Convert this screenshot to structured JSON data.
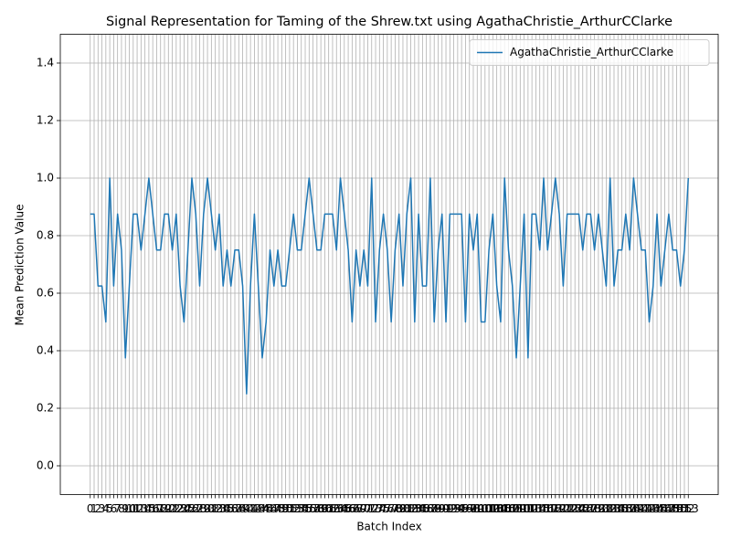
{
  "chart_data": {
    "type": "line",
    "title": "Signal Representation for Taming of the Shrew.txt using AgathaChristie_ArthurCClarke",
    "xlabel": "Batch Index",
    "ylabel": "Mean Prediction Value",
    "x": [
      0,
      1,
      2,
      3,
      4,
      5,
      6,
      7,
      8,
      9,
      10,
      11,
      12,
      13,
      14,
      15,
      16,
      17,
      18,
      19,
      20,
      21,
      22,
      23,
      24,
      25,
      26,
      27,
      28,
      29,
      30,
      31,
      32,
      33,
      34,
      35,
      36,
      37,
      38,
      39,
      40,
      41,
      42,
      43,
      44,
      45,
      46,
      47,
      48,
      49,
      50,
      51,
      52,
      53,
      54,
      55,
      56,
      57,
      58,
      59,
      60,
      61,
      62,
      63,
      64,
      65,
      66,
      67,
      68,
      69,
      70,
      71,
      72,
      73,
      74,
      75,
      76,
      77,
      78,
      79,
      80,
      81,
      82,
      83,
      84,
      85,
      86,
      87,
      88,
      89,
      90,
      91,
      92,
      93,
      94,
      95,
      96,
      97,
      98,
      99,
      100,
      101,
      102,
      103,
      104,
      105,
      106,
      107,
      108,
      109,
      110,
      111,
      112,
      113,
      114,
      115,
      116,
      117,
      118,
      119,
      120,
      121,
      122,
      123,
      124,
      125,
      126,
      127,
      128,
      129,
      130,
      131,
      132,
      133,
      134,
      135,
      136,
      137,
      138,
      139,
      140,
      141,
      142,
      143,
      144,
      145,
      146,
      147,
      148,
      149,
      150,
      151,
      152,
      153
    ],
    "series": [
      {
        "name": "AgathaChristie_ArthurCClarke",
        "color": "#1f77b4",
        "values": [
          0.875,
          0.875,
          0.625,
          0.625,
          0.5,
          1,
          0.625,
          0.875,
          0.75,
          0.375,
          0.625,
          0.875,
          0.875,
          0.75,
          0.875,
          1,
          0.875,
          0.75,
          0.75,
          0.875,
          0.875,
          0.75,
          0.875,
          0.625,
          0.5,
          0.75,
          1,
          0.875,
          0.625,
          0.875,
          1,
          0.875,
          0.75,
          0.875,
          0.625,
          0.75,
          0.625,
          0.75,
          0.75,
          0.625,
          0.25,
          0.625,
          0.875,
          0.625,
          0.375,
          0.5,
          0.75,
          0.625,
          0.75,
          0.625,
          0.625,
          0.75,
          0.875,
          0.75,
          0.75,
          0.875,
          1,
          0.875,
          0.75,
          0.75,
          0.875,
          0.875,
          0.875,
          0.75,
          1,
          0.875,
          0.75,
          0.5,
          0.75,
          0.625,
          0.75,
          0.625,
          1,
          0.5,
          0.75,
          0.875,
          0.75,
          0.5,
          0.75,
          0.875,
          0.625,
          0.875,
          1,
          0.5,
          0.875,
          0.625,
          0.625,
          1,
          0.5,
          0.75,
          0.875,
          0.5,
          0.875,
          0.875,
          0.875,
          0.875,
          0.5,
          0.875,
          0.75,
          0.875,
          0.5,
          0.5,
          0.75,
          0.875,
          0.625,
          0.5,
          1,
          0.75,
          0.625,
          0.375,
          0.625,
          0.875,
          0.375,
          0.875,
          0.875,
          0.75,
          1,
          0.75,
          0.875,
          1,
          0.875,
          0.625,
          0.875,
          0.875,
          0.875,
          0.875,
          0.75,
          0.875,
          0.875,
          0.75,
          0.875,
          0.75,
          0.625,
          1,
          0.625,
          0.75,
          0.75,
          0.875,
          0.75,
          1,
          0.875,
          0.75,
          0.75,
          0.5,
          0.625,
          0.875,
          0.625,
          0.75,
          0.875,
          0.75,
          0.75,
          0.625,
          0.75,
          1
        ]
      }
    ],
    "xlim": [
      -7.65,
      160.65
    ],
    "xticks": [
      0,
      1,
      2,
      3,
      4,
      5,
      6,
      7,
      8,
      9,
      10,
      11,
      12,
      13,
      14,
      15,
      16,
      17,
      18,
      19,
      20,
      21,
      22,
      23,
      24,
      25,
      26,
      27,
      28,
      29,
      30,
      31,
      32,
      33,
      34,
      35,
      36,
      37,
      38,
      39,
      40,
      41,
      42,
      43,
      44,
      45,
      46,
      47,
      48,
      49,
      50,
      51,
      52,
      53,
      54,
      55,
      56,
      57,
      58,
      59,
      60,
      61,
      62,
      63,
      64,
      65,
      66,
      67,
      68,
      69,
      70,
      71,
      72,
      73,
      74,
      75,
      76,
      77,
      78,
      79,
      80,
      81,
      82,
      83,
      84,
      85,
      86,
      87,
      88,
      89,
      90,
      91,
      92,
      93,
      94,
      95,
      96,
      97,
      98,
      99,
      100,
      101,
      102,
      103,
      104,
      105,
      106,
      107,
      108,
      109,
      110,
      111,
      112,
      113,
      114,
      115,
      116,
      117,
      118,
      119,
      120,
      121,
      122,
      123,
      124,
      125,
      126,
      127,
      128,
      129,
      130,
      131,
      132,
      133,
      134,
      135,
      136,
      137,
      138,
      139,
      140,
      141,
      142,
      143,
      144,
      145,
      146,
      147,
      148,
      149,
      150,
      151,
      152,
      153
    ],
    "ylim": [
      -0.1,
      1.5
    ],
    "yticks": [
      {
        "value": 0,
        "label": "0.0"
      },
      {
        "value": 0.2,
        "label": "0.2"
      },
      {
        "value": 0.4,
        "label": "0.4"
      },
      {
        "value": 0.6,
        "label": "0.6"
      },
      {
        "value": 0.8,
        "label": "0.8"
      },
      {
        "value": 1,
        "label": "1.0"
      },
      {
        "value": 1.2,
        "label": "1.2"
      },
      {
        "value": 1.4,
        "label": "1.4"
      }
    ],
    "grid": true,
    "legend": "upper right"
  }
}
